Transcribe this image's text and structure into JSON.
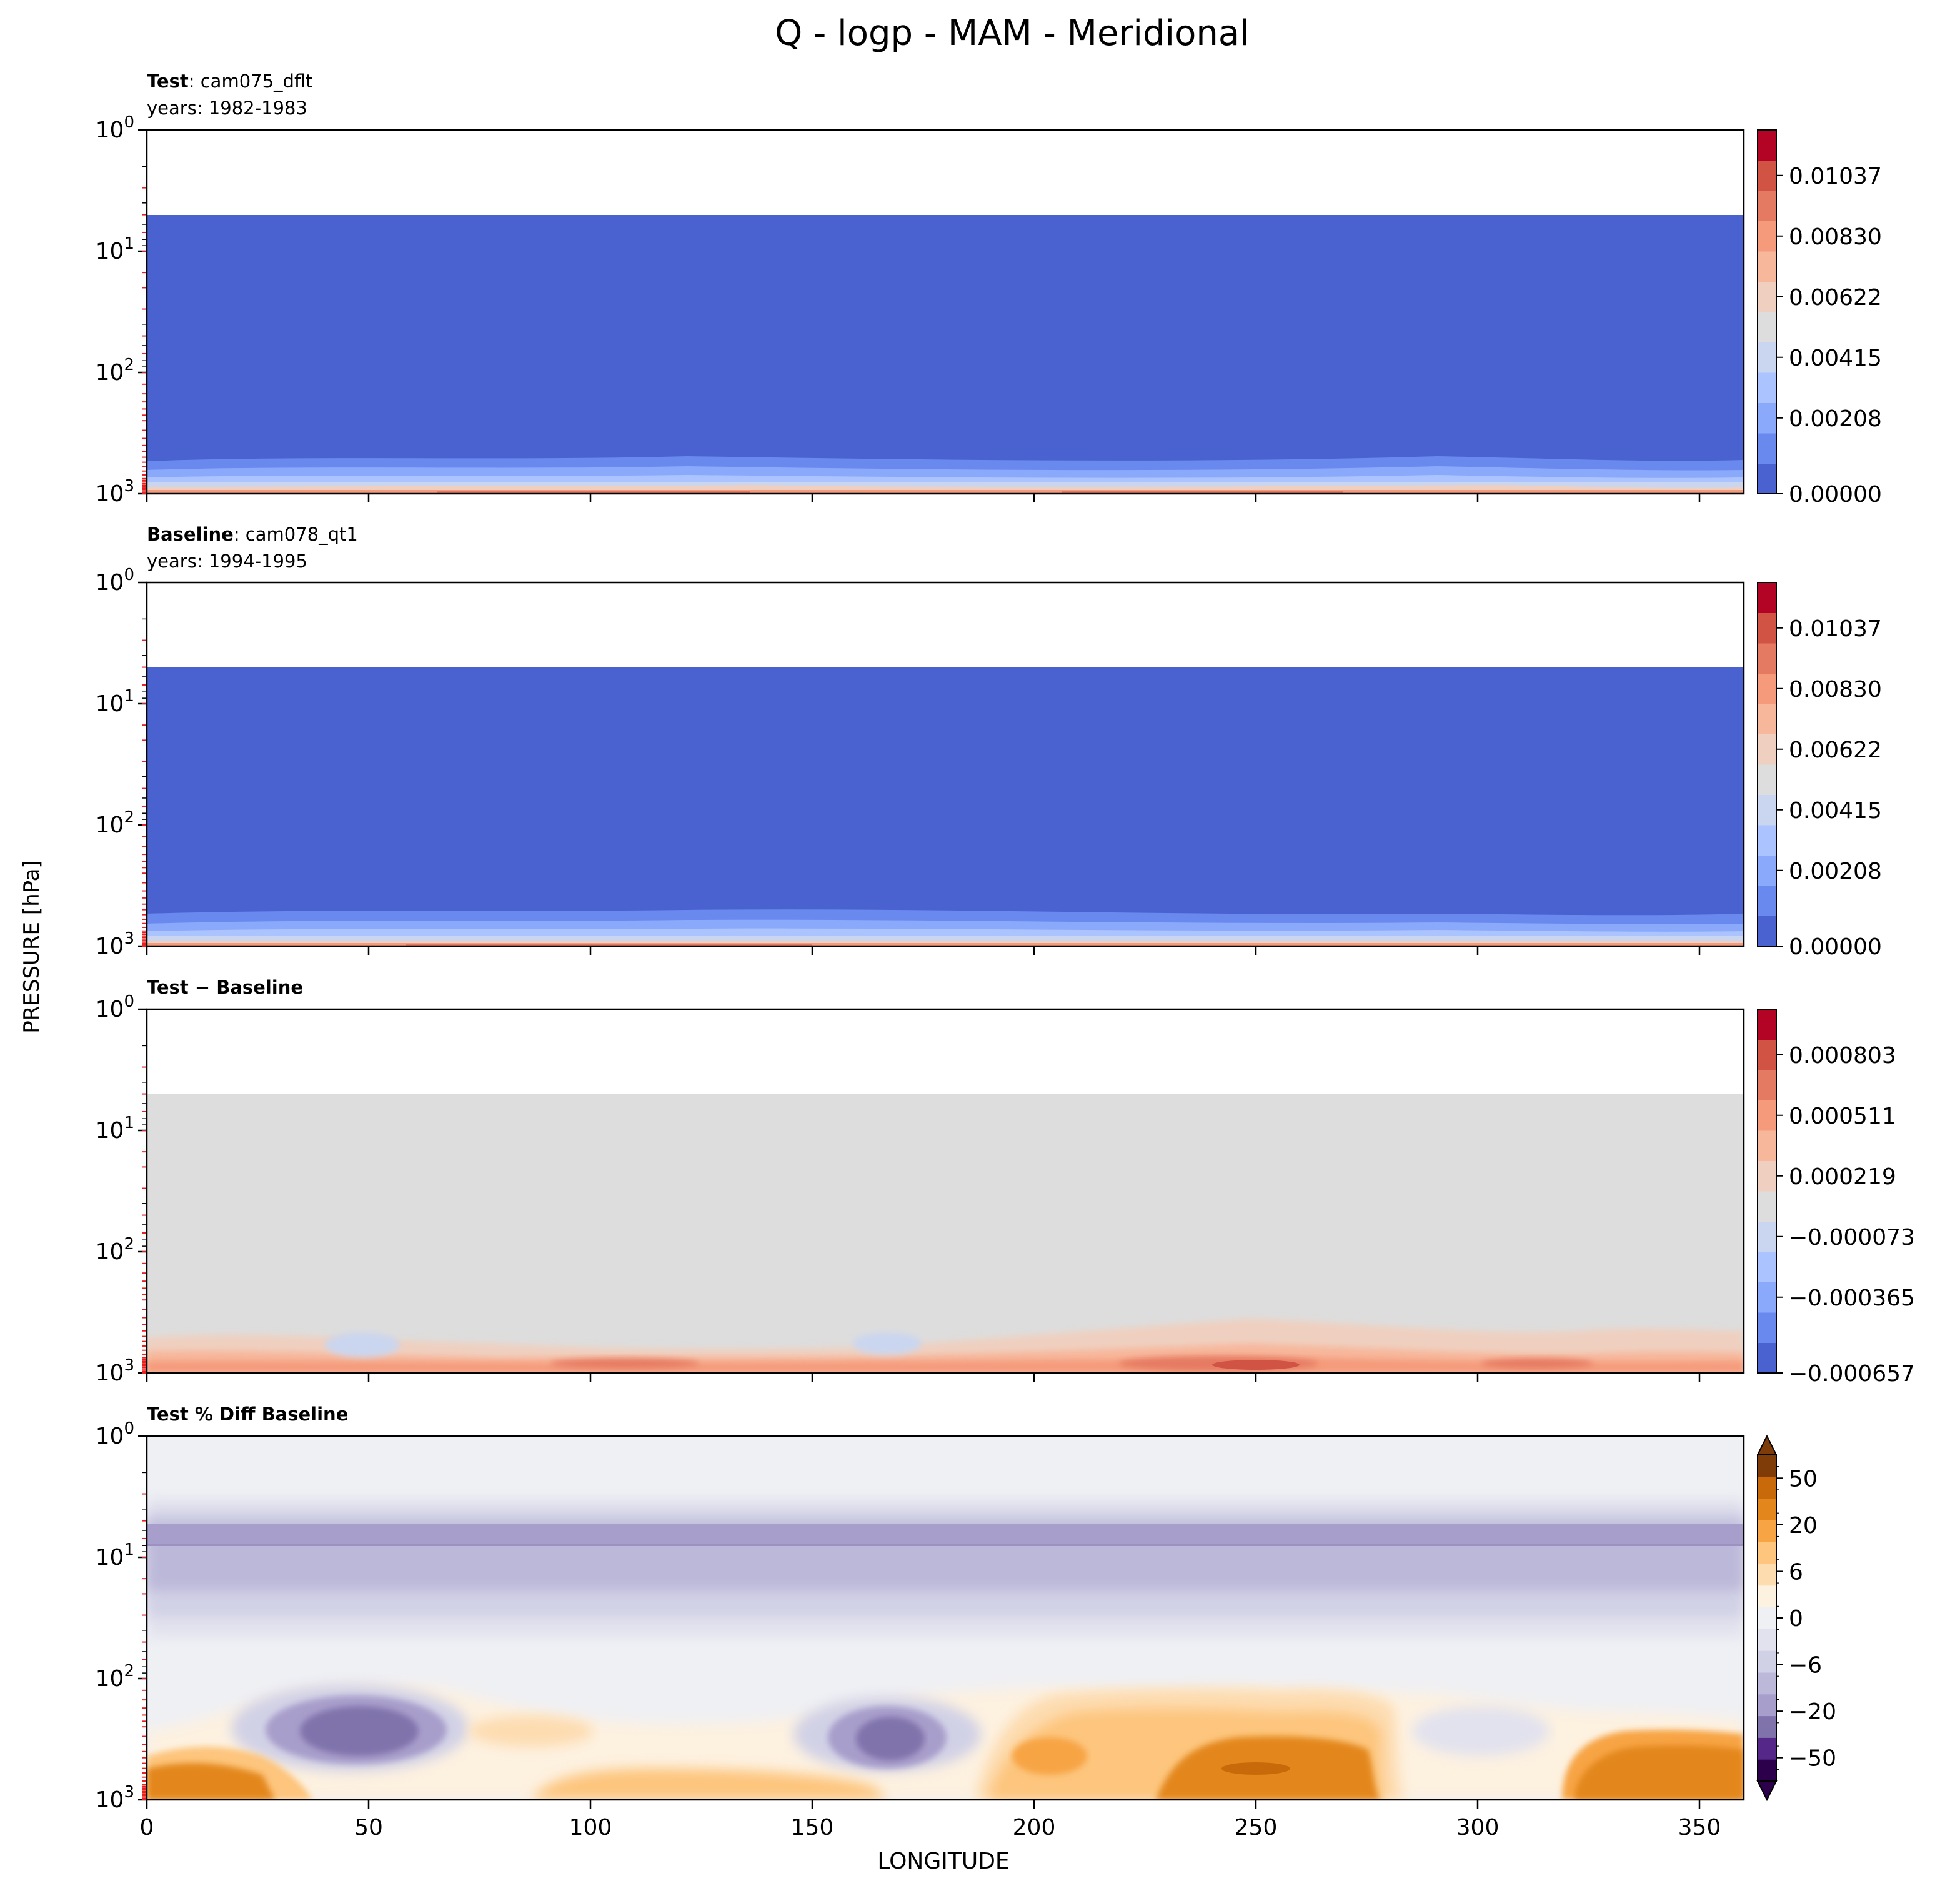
{
  "figure": {
    "title": "Q - logp - MAM - Meridional",
    "ylabel": "PRESSURE [hPa]",
    "xlabel": "LONGITUDE"
  },
  "chart_data": [
    {
      "id": "test",
      "type": "heatmap",
      "title_bold": "Test",
      "title_rest": ": cam075_dflt",
      "subtitle": "years: 1982-1983",
      "x_range": [
        0,
        360
      ],
      "y_range": [
        1,
        1000
      ],
      "y_scale": "log",
      "x_ticks": [
        "0",
        "50",
        "100",
        "150",
        "200",
        "250",
        "300",
        "350"
      ],
      "y_ticks": [
        "10^0",
        "10^1",
        "10^2",
        "10^3"
      ],
      "colorbar": {
        "colors": [
          "#4a62d0",
          "#6a89ef",
          "#8aa9fb",
          "#abc4ff",
          "#cad6ef",
          "#dddddd",
          "#efd0c0",
          "#f7b79b",
          "#f59b7c",
          "#e57a62",
          "#d05343",
          "#b40426"
        ],
        "tick_labels": [
          "0.00000",
          "0.00208",
          "0.00415",
          "0.00622",
          "0.00830",
          "0.01037"
        ]
      },
      "field_description": "Q near zero above ~600 hPa; moist boundary layer near surface, max at surface ~0.011"
    },
    {
      "id": "baseline",
      "type": "heatmap",
      "title_bold": "Baseline",
      "title_rest": ": cam078_qt1",
      "subtitle": "years: 1994-1995",
      "x_range": [
        0,
        360
      ],
      "y_range": [
        1,
        1000
      ],
      "y_scale": "log",
      "x_ticks": [
        "0",
        "50",
        "100",
        "150",
        "200",
        "250",
        "300",
        "350"
      ],
      "y_ticks": [
        "10^0",
        "10^1",
        "10^2",
        "10^3"
      ],
      "colorbar": {
        "colors": [
          "#4a62d0",
          "#6a89ef",
          "#8aa9fb",
          "#abc4ff",
          "#cad6ef",
          "#dddddd",
          "#efd0c0",
          "#f7b79b",
          "#f59b7c",
          "#e57a62",
          "#d05343",
          "#b40426"
        ],
        "tick_labels": [
          "0.00000",
          "0.00208",
          "0.00415",
          "0.00622",
          "0.00830",
          "0.01037"
        ]
      }
    },
    {
      "id": "diff",
      "type": "heatmap",
      "title_bold": "Test − Baseline",
      "title_rest": "",
      "subtitle": "",
      "x_range": [
        0,
        360
      ],
      "y_range": [
        1,
        1000
      ],
      "y_scale": "log",
      "x_ticks": [
        "0",
        "50",
        "100",
        "150",
        "200",
        "250",
        "300",
        "350"
      ],
      "y_ticks": [
        "10^0",
        "10^1",
        "10^2",
        "10^3"
      ],
      "colorbar": {
        "colors": [
          "#4a62d0",
          "#6a89ef",
          "#8aa9fb",
          "#abc4ff",
          "#cad6ef",
          "#dddddd",
          "#efd0c0",
          "#f7b79b",
          "#f59b7c",
          "#e57a62",
          "#d05343",
          "#b40426"
        ],
        "tick_labels": [
          "−0.000657",
          "−0.000365",
          "−0.000073",
          "0.000219",
          "0.000511",
          "0.000803"
        ]
      }
    },
    {
      "id": "pctdiff",
      "type": "heatmap",
      "title_bold": "Test % Diff Baseline",
      "title_rest": "",
      "subtitle": "",
      "x_range": [
        0,
        360
      ],
      "y_range": [
        1,
        1000
      ],
      "y_scale": "log",
      "x_ticks": [
        "0",
        "50",
        "100",
        "150",
        "200",
        "250",
        "300",
        "350"
      ],
      "y_ticks": [
        "10^0",
        "10^1",
        "10^2",
        "10^3"
      ],
      "colorbar": {
        "colors": [
          "#2d004b",
          "#542788",
          "#8073ac",
          "#a89ecb",
          "#bcb8d9",
          "#d1d1e6",
          "#e2e2ee",
          "#eff0f4",
          "#fdf1e0",
          "#fddcb0",
          "#fdc57d",
          "#f7a444",
          "#e3871c",
          "#c86a0a",
          "#7f3b08"
        ],
        "tick_labels": [
          "−50",
          "−20",
          "−6",
          "0",
          "6",
          "20",
          "50"
        ]
      }
    }
  ]
}
